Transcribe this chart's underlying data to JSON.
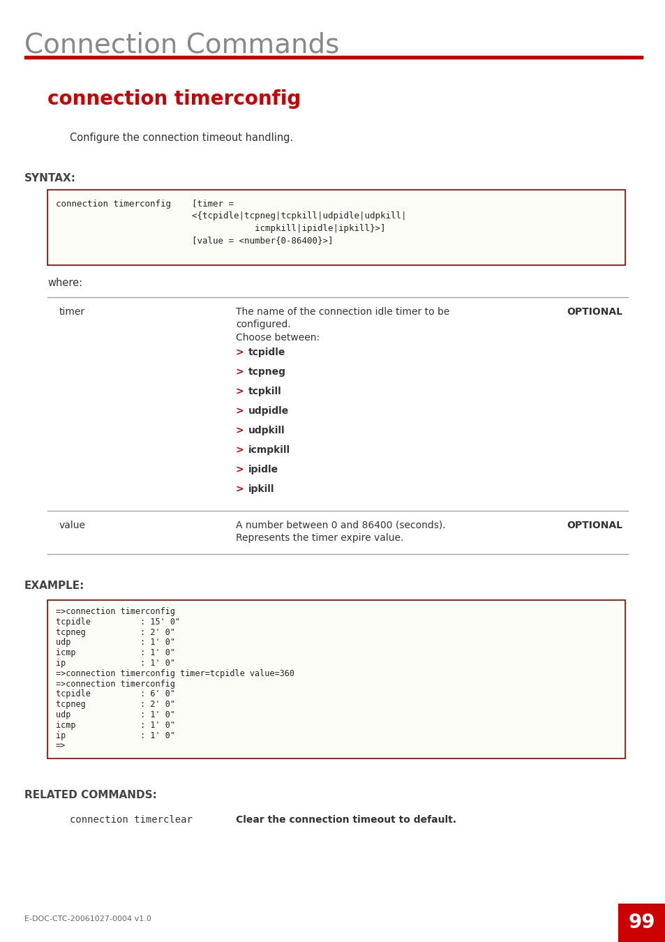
{
  "page_title": "Connection Commands",
  "red_color": "#CC0000",
  "gray_title_color": "#888888",
  "command_title": "connection timerconfig",
  "description": "Configure the connection timeout handling.",
  "syntax_label": "SYNTAX:",
  "where_label": "where:",
  "syntax_line1": "connection timerconfig    [timer =",
  "syntax_line2": "                          <{tcpidle|tcpneg|tcpkill|udpidle|udpkill|",
  "syntax_line3": "                                      icmpkill|ipidle|ipkill}>]",
  "syntax_line4": "                          [value = <number{0-86400}>]",
  "bullets": [
    "tcpidle",
    "tcpneg",
    "tcpkill",
    "udpidle",
    "udpkill",
    "icmpkill",
    "ipidle",
    "ipkill"
  ],
  "example_label": "EXAMPLE:",
  "example_lines": [
    "=>connection timerconfig",
    "tcpidle          : 15' 0\"",
    "tcpneg           : 2' 0\"",
    "udp              : 1' 0\"",
    "icmp             : 1' 0\"",
    "ip               : 1' 0\"",
    "=>connection timerconfig timer=tcpidle value=360",
    "=>connection timerconfig",
    "tcpidle          : 6' 0\"",
    "tcpneg           : 2' 0\"",
    "udp              : 1' 0\"",
    "icmp             : 1' 0\"",
    "ip               : 1' 0\"",
    "=>"
  ],
  "related_label": "RELATED COMMANDS:",
  "related_cmd": "connection timerclear",
  "related_desc": "Clear the connection timeout to default.",
  "footer_text": "E-DOC-CTC-20061027-0004 v1.0",
  "page_number": "99",
  "bg_color": "#ffffff",
  "box_border_color": "#8B0000",
  "box_bg_color": "#FEFEFE",
  "line_color": "#999999",
  "text_dark": "#222222",
  "text_medium": "#333333",
  "optional_color": "#333333"
}
